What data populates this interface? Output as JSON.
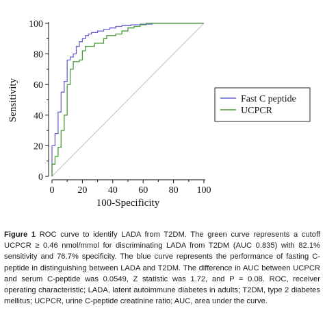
{
  "chart_data": {
    "type": "line",
    "xlabel": "100-Specificity",
    "ylabel": "Sensitivity",
    "xlim": [
      0,
      100
    ],
    "ylim": [
      0,
      100
    ],
    "x_ticks": [
      "0",
      "20",
      "40",
      "60",
      "80",
      "100"
    ],
    "y_ticks": [
      "0",
      "20",
      "40",
      "60",
      "80",
      "100"
    ],
    "legend_position": "right",
    "diagonal_reference_line": true,
    "series": [
      {
        "name": "Fast C peptide",
        "color": "#6666cc",
        "x": [
          0,
          0,
          2,
          2,
          4,
          4,
          6,
          6,
          8,
          8,
          10,
          10,
          12,
          12,
          14,
          14,
          16,
          16,
          18,
          18,
          20,
          20,
          22,
          22,
          24,
          24,
          26,
          26,
          30,
          30,
          34,
          34,
          38,
          38,
          42,
          42,
          46,
          46,
          52,
          52,
          58,
          58,
          66,
          66,
          100
        ],
        "y": [
          0,
          20,
          20,
          28,
          28,
          42,
          42,
          55,
          55,
          62,
          62,
          76,
          76,
          78,
          78,
          80,
          80,
          85,
          85,
          88,
          88,
          90,
          90,
          92,
          92,
          93,
          93,
          94,
          94,
          95,
          95,
          96,
          96,
          97,
          97,
          98,
          98,
          98.5,
          98.5,
          99,
          99,
          99.5,
          99.5,
          100,
          100
        ]
      },
      {
        "name": "UCPCR",
        "color": "#4a9a3a",
        "x": [
          0,
          0,
          2,
          2,
          4,
          4,
          6,
          6,
          8,
          8,
          10,
          10,
          12,
          12,
          14,
          14,
          18,
          18,
          20,
          20,
          22,
          22,
          28,
          28,
          34,
          34,
          36,
          36,
          42,
          42,
          46,
          46,
          50,
          50,
          54,
          54,
          58,
          58,
          62,
          62,
          100
        ],
        "y": [
          0,
          8,
          8,
          13,
          13,
          19,
          19,
          30,
          30,
          40,
          40,
          60,
          60,
          70,
          70,
          75,
          75,
          76,
          76,
          82,
          82,
          85,
          85,
          87,
          87,
          90,
          90,
          92,
          92,
          93,
          93,
          95,
          95,
          97,
          97,
          98,
          98,
          99,
          99,
          100,
          100
        ]
      }
    ]
  },
  "caption": {
    "figure_label": "Figure 1",
    "text": "ROC curve to identify LADA from T2DM. The green curve represents a cutoff UCPCR ≥ 0.46 nmol/mmol for discriminating LADA from T2DM (AUC 0.835) with 82.1% sensitivity and 76.7% specificity. The blue curve represents the performance of fasting C-peptide in distinguishing between LADA and T2DM. The difference in AUC between UCPCR and serum C-peptide was 0.0549, Z statistic was 1.72, and P = 0.08. ROC, receiver operating characteristic; LADA, latent autoimmune diabetes in adults; T2DM, type 2 diabetes mellitus; UCPCR, urine C-peptide creatinine ratio; AUC, area under the curve."
  }
}
